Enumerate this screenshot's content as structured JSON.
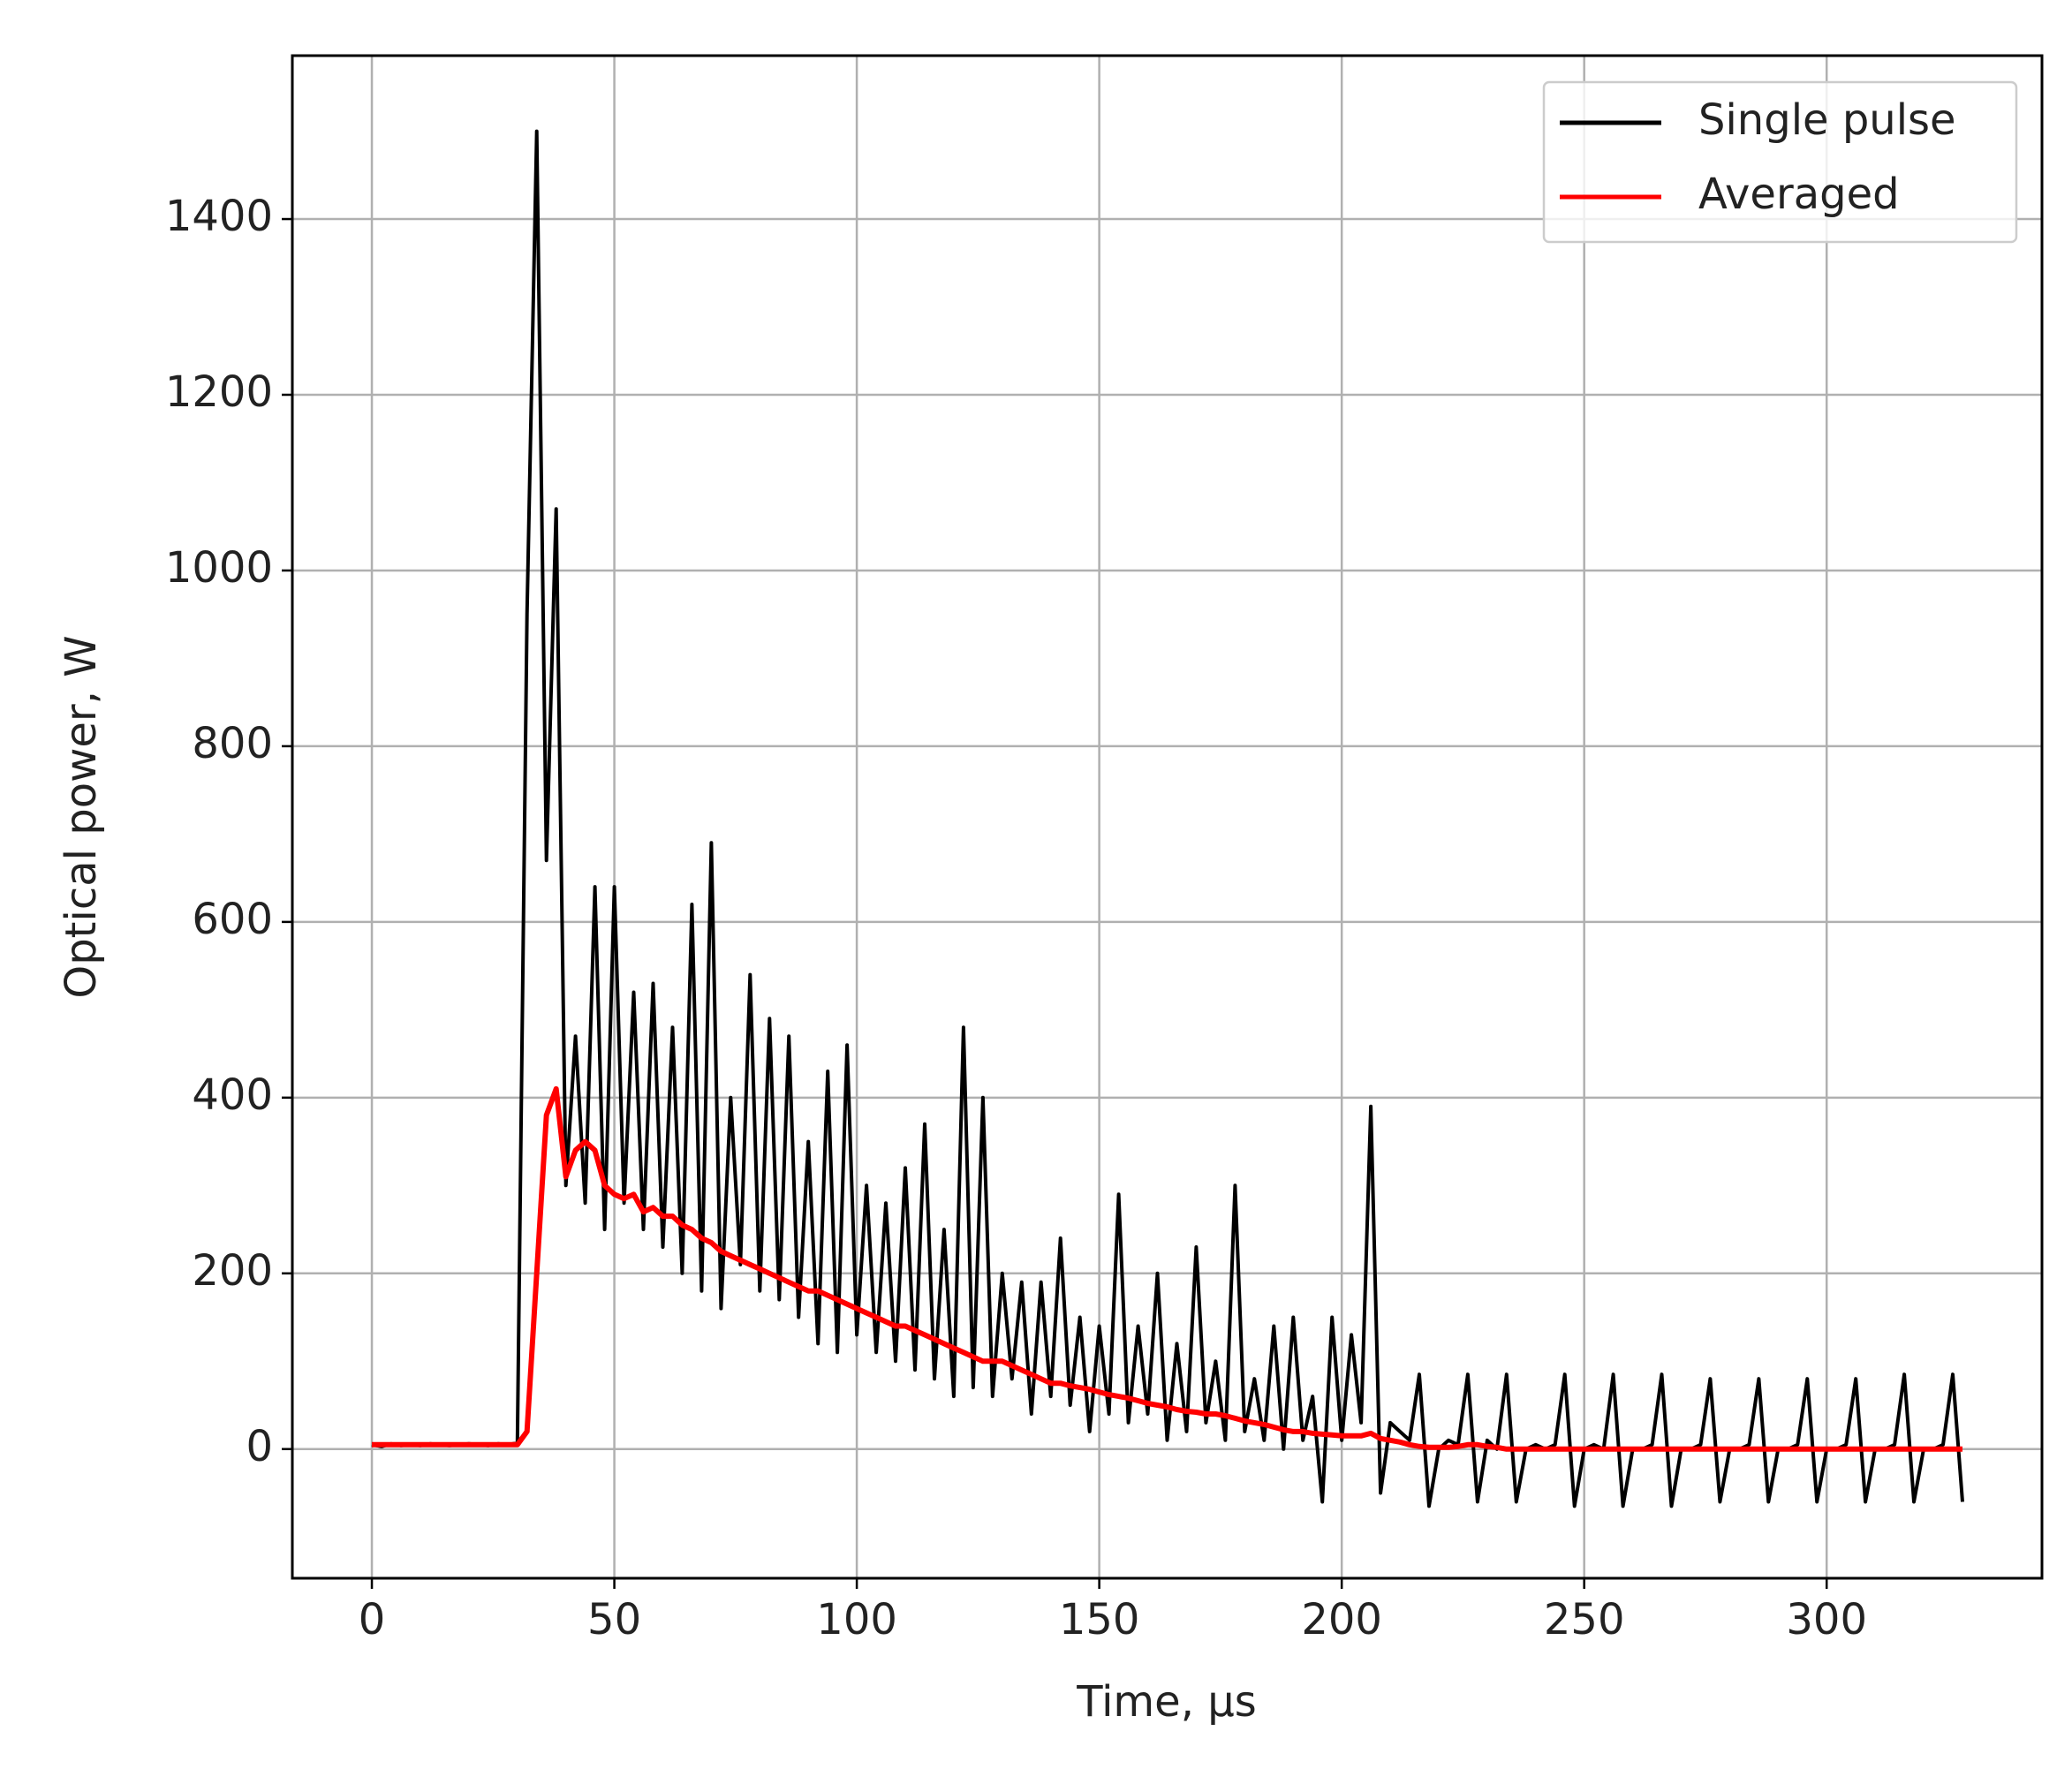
{
  "chart_data": {
    "type": "line",
    "xlabel": "Time, µs",
    "ylabel": "Optical power, W",
    "x": [
      0,
      2,
      4,
      6,
      8,
      10,
      12,
      14,
      16,
      18,
      20,
      22,
      24,
      26,
      28,
      30,
      32,
      34,
      36,
      38,
      40,
      42,
      44,
      46,
      48,
      50,
      52,
      54,
      56,
      58,
      60,
      62,
      64,
      66,
      68,
      70,
      72,
      74,
      76,
      78,
      80,
      82,
      84,
      86,
      88,
      90,
      92,
      94,
      96,
      98,
      100,
      102,
      104,
      106,
      108,
      110,
      112,
      114,
      116,
      118,
      120,
      122,
      124,
      126,
      128,
      130,
      132,
      134,
      136,
      138,
      140,
      142,
      144,
      146,
      148,
      150,
      152,
      154,
      156,
      158,
      160,
      162,
      164,
      166,
      168,
      170,
      172,
      174,
      176,
      178,
      180,
      182,
      184,
      186,
      188,
      190,
      192,
      194,
      196,
      198,
      200,
      202,
      204,
      206,
      208,
      210,
      212,
      214,
      216,
      218,
      220,
      222,
      224,
      226,
      228,
      230,
      232,
      234,
      236,
      238,
      240,
      242,
      244,
      246,
      248,
      250,
      252,
      254,
      256,
      258,
      260,
      262,
      264,
      266,
      268,
      270,
      272,
      274,
      276,
      278,
      280,
      282,
      284,
      286,
      288,
      290,
      292,
      294,
      296,
      298,
      300,
      302,
      304,
      306,
      308,
      310,
      312,
      314,
      316,
      318,
      320,
      322,
      324,
      326,
      328
    ],
    "series": [
      {
        "name": "Single pulse",
        "color": "#000000",
        "values": [
          5,
          3,
          6,
          4,
          5,
          4,
          6,
          5,
          4,
          5,
          6,
          5,
          4,
          6,
          5,
          7,
          950,
          1500,
          670,
          1070,
          300,
          470,
          280,
          640,
          250,
          640,
          280,
          520,
          250,
          530,
          230,
          480,
          200,
          620,
          180,
          690,
          160,
          400,
          210,
          540,
          180,
          490,
          170,
          470,
          150,
          350,
          120,
          430,
          110,
          460,
          130,
          300,
          110,
          280,
          100,
          320,
          90,
          370,
          80,
          250,
          60,
          480,
          70,
          400,
          60,
          200,
          80,
          190,
          40,
          190,
          60,
          240,
          50,
          150,
          20,
          140,
          40,
          290,
          30,
          140,
          40,
          200,
          10,
          120,
          20,
          230,
          30,
          100,
          10,
          300,
          20,
          80,
          10,
          140,
          0,
          150,
          10,
          60,
          -60,
          150,
          10,
          130,
          30,
          390,
          -50,
          30,
          20,
          10,
          85,
          -65,
          0,
          10,
          5,
          85,
          -60,
          10,
          0,
          85,
          -60,
          0,
          5,
          0,
          5,
          85,
          -65,
          0,
          5,
          0,
          85,
          -65,
          0,
          0,
          5,
          85,
          -65,
          0,
          0,
          5,
          80,
          -60,
          0,
          0,
          5,
          80,
          -60,
          0,
          0,
          5,
          80,
          -60,
          0,
          0,
          5,
          80,
          -60,
          0,
          0,
          5,
          85,
          -60,
          0,
          0,
          5,
          85,
          -60
        ]
      },
      {
        "name": "Averaged",
        "color": "#ff0000",
        "values": [
          5,
          5,
          5,
          5,
          5,
          5,
          5,
          5,
          5,
          5,
          5,
          5,
          5,
          5,
          5,
          5,
          20,
          200,
          380,
          410,
          310,
          340,
          350,
          340,
          300,
          290,
          285,
          290,
          270,
          275,
          265,
          265,
          255,
          250,
          240,
          235,
          225,
          220,
          215,
          210,
          205,
          200,
          195,
          190,
          185,
          180,
          180,
          175,
          170,
          165,
          160,
          155,
          150,
          145,
          140,
          140,
          135,
          130,
          125,
          120,
          115,
          110,
          105,
          100,
          100,
          100,
          95,
          90,
          85,
          80,
          75,
          75,
          72,
          70,
          68,
          65,
          62,
          60,
          58,
          55,
          52,
          50,
          48,
          45,
          43,
          42,
          40,
          40,
          38,
          35,
          32,
          30,
          28,
          25,
          22,
          20,
          20,
          18,
          17,
          16,
          15,
          15,
          15,
          18,
          12,
          10,
          8,
          5,
          3,
          2,
          2,
          2,
          3,
          5,
          5,
          3,
          2,
          0,
          0,
          0,
          0,
          0,
          0,
          0,
          0,
          0,
          0,
          0,
          0,
          0,
          0,
          0,
          0,
          0,
          0,
          0,
          0,
          0,
          0,
          0,
          0,
          0,
          0,
          0,
          0,
          0,
          0,
          0,
          0,
          0,
          0,
          0,
          0,
          0,
          0,
          0,
          0,
          0,
          0,
          0,
          0,
          0,
          0,
          0,
          0
        ]
      }
    ],
    "xlim": [
      -16.4,
      344.4
    ],
    "xticks": [
      0,
      50,
      100,
      150,
      200,
      250,
      300
    ],
    "ylim": [
      -147,
      1586
    ],
    "yticks": [
      0,
      200,
      400,
      600,
      800,
      1000,
      1200,
      1400
    ],
    "grid": true,
    "legend": "upper right"
  }
}
